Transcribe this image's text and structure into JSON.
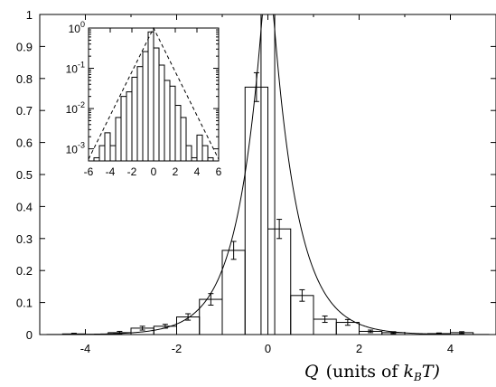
{
  "chart_data": [
    {
      "type": "bar",
      "title": "",
      "xlabel_main": "Q",
      "xlabel_unit_pre": "(units of ",
      "xlabel_unit_k": "k",
      "xlabel_unit_sub": "B",
      "xlabel_unit_post": "T)",
      "ylabel": "",
      "xlim": [
        -5,
        5
      ],
      "ylim": [
        0,
        1
      ],
      "x_ticks": [
        -4,
        -2,
        0,
        2,
        4
      ],
      "y_ticks": [
        0,
        0.1,
        0.2,
        0.3,
        0.4,
        0.5,
        0.6,
        0.7,
        0.8,
        0.9,
        1
      ],
      "y_tick_labels": [
        "0",
        "0.1",
        "0.2",
        "0.3",
        "0.4",
        "0.5",
        "0.6",
        "0.7",
        "0.8",
        "0.9",
        "1"
      ],
      "x_tick_labels": [
        "-4",
        "-2",
        "0",
        "2",
        "4"
      ],
      "bin_width": 0.5,
      "bin_centers": [
        -4.75,
        -4.25,
        -3.75,
        -3.25,
        -2.75,
        -2.25,
        -1.75,
        -1.25,
        -0.75,
        -0.25,
        0.25,
        0.75,
        1.25,
        1.75,
        2.25,
        2.75,
        3.25,
        3.75,
        4.25,
        4.75
      ],
      "values": [
        0.0,
        0.002,
        0.0,
        0.006,
        0.02,
        0.026,
        0.055,
        0.11,
        0.263,
        0.773,
        0.33,
        0.122,
        0.048,
        0.038,
        0.01,
        0.006,
        0.0,
        0.003,
        0.006,
        0.0
      ],
      "errors": [
        0.0,
        0.002,
        0.0,
        0.004,
        0.006,
        0.006,
        0.01,
        0.018,
        0.028,
        0.045,
        0.03,
        0.018,
        0.01,
        0.009,
        0.004,
        0.003,
        0.0,
        0.002,
        0.003,
        0.0
      ],
      "central_spike": {
        "x": -0.15,
        "width": 0.3,
        "value": 1.0
      },
      "fit_curve": "solid line, laplace-like fit peaked at 0"
    },
    {
      "type": "bar",
      "role": "inset",
      "yscale": "log",
      "xlim": [
        -6,
        6
      ],
      "ylim": [
        0.0005,
        1
      ],
      "x_ticks": [
        -6,
        -4,
        -2,
        0,
        2,
        4,
        6
      ],
      "x_tick_labels": [
        "-6",
        "-4",
        "-2",
        "0",
        "2",
        "4",
        "6"
      ],
      "y_ticks": [
        0.001,
        0.01,
        0.1,
        1
      ],
      "y_tick_base": "10",
      "y_tick_exponents": [
        "-3",
        "-2",
        "-1",
        "0"
      ],
      "bin_width": 0.5,
      "bin_centers": [
        -5.25,
        -4.75,
        -4.25,
        -3.75,
        -3.25,
        -2.75,
        -2.25,
        -1.75,
        -1.25,
        -0.75,
        -0.25,
        0.25,
        0.75,
        1.25,
        1.75,
        2.25,
        2.75,
        3.25,
        3.75,
        4.25,
        4.75,
        5.25
      ],
      "values": [
        0.0006,
        0.0012,
        0.0025,
        0.0012,
        0.006,
        0.02,
        0.026,
        0.06,
        0.11,
        0.26,
        0.8,
        0.32,
        0.12,
        0.05,
        0.036,
        0.012,
        0.006,
        0.0012,
        0.0006,
        0.0022,
        0.0012,
        0.0006
      ],
      "fit_curve": "dashed line, straight on log scale"
    }
  ]
}
